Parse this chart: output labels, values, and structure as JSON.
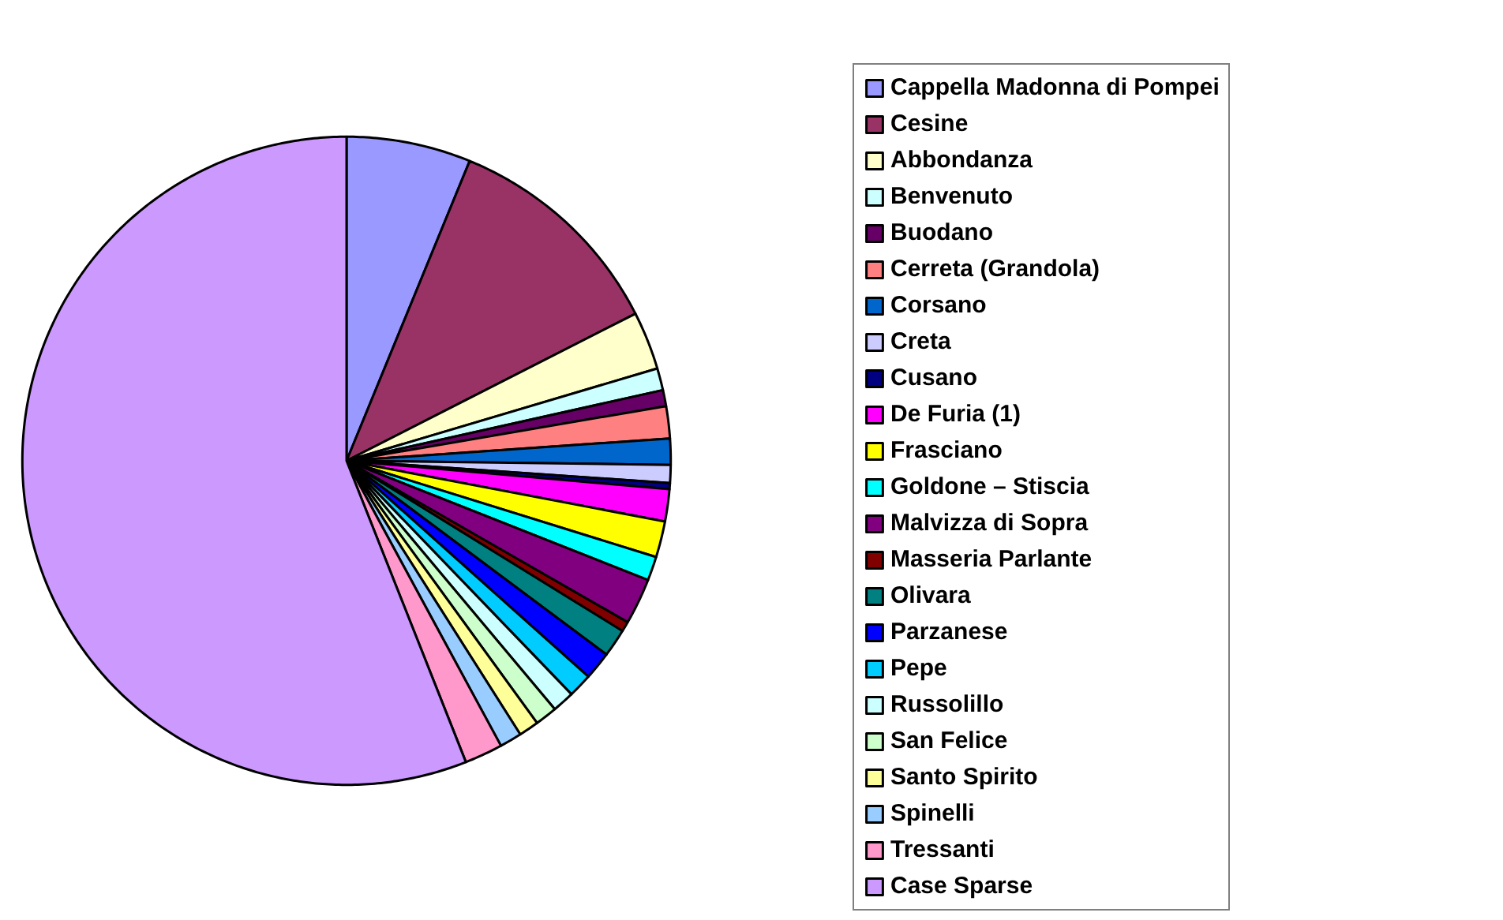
{
  "chart_data": {
    "type": "pie",
    "categories": [
      "Cappella Madonna di Pompei",
      "Cesine",
      "Abbondanza",
      "Benvenuto",
      "Buodano",
      "Cerreta (Grandola)",
      "Corsano",
      "Creta",
      "Cusano",
      "De Furia (1)",
      "Frasciano",
      "Goldone – Stiscia",
      "Malvizza di Sopra",
      "Masseria Parlante",
      "Olivara",
      "Parzanese",
      "Pepe",
      "Russolillo",
      "San Felice",
      "Santo Spirito",
      "Spinelli",
      "Tressanti",
      "Case Sparse"
    ],
    "values": [
      6.2,
      11.3,
      2.9,
      1.1,
      0.8,
      1.6,
      1.3,
      0.9,
      0.3,
      1.6,
      1.8,
      1.2,
      2.3,
      0.5,
      1.4,
      1.4,
      1.2,
      1.1,
      1.1,
      1.0,
      1.1,
      1.9,
      56.0
    ],
    "colors": [
      "#9999ff",
      "#993366",
      "#ffffcc",
      "#ccffff",
      "#660066",
      "#ff8080",
      "#0066cc",
      "#ccccff",
      "#000080",
      "#ff00ff",
      "#ffff00",
      "#00ffff",
      "#800080",
      "#800000",
      "#008080",
      "#0000ff",
      "#00ccff",
      "#ccffff",
      "#ccffcc",
      "#ffff99",
      "#99ccff",
      "#ff99cc",
      "#cc99ff"
    ],
    "legend": "right"
  }
}
